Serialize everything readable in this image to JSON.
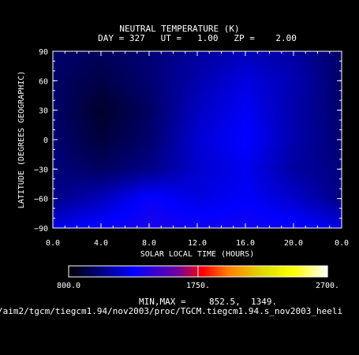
{
  "chart_data": {
    "type": "heatmap",
    "title": "NEUTRAL TEMPERATURE (K)",
    "subtitle": "DAY = 327   UT =   1.00   ZP =    2.00",
    "xlabel": "SOLAR LOCAL TIME (HOURS)",
    "ylabel": "LATITUDE (DEGREES GEOGRAPHIC)",
    "x_ticks": [
      "0.0",
      "4.0",
      "8.0",
      "12.0",
      "16.0",
      "20.0",
      "0.0"
    ],
    "y_ticks": [
      "90",
      "60",
      "30",
      "0",
      "−30",
      "−60",
      "−90"
    ],
    "xlim": [
      0,
      24
    ],
    "ylim": [
      -90,
      90
    ],
    "field": {
      "lats": [
        90,
        60,
        30,
        0,
        -30,
        -60,
        -90
      ],
      "lts": [
        0,
        4,
        8,
        12,
        16,
        20,
        24
      ],
      "values": [
        [
          1000,
          970,
          1020,
          1090,
          1140,
          1100,
          1000
        ],
        [
          990,
          930,
          1010,
          1120,
          1220,
          1130,
          990
        ],
        [
          1000,
          880,
          980,
          1160,
          1260,
          1120,
          1000
        ],
        [
          1010,
          910,
          1000,
          1190,
          1290,
          1120,
          1010
        ],
        [
          1030,
          980,
          1050,
          1180,
          1250,
          1100,
          1030
        ],
        [
          1050,
          1150,
          1300,
          1220,
          1270,
          1180,
          1050
        ],
        [
          1230,
          1300,
          1349,
          1320,
          1330,
          1300,
          1230
        ]
      ]
    },
    "colorbar": {
      "min_label": "800.0",
      "mid_label": "1750.",
      "max_label": "2700.",
      "range": [
        800,
        2700
      ]
    },
    "minmax_label": "MIN,MAX =",
    "min_value": "852.5,",
    "max_value": "1349.",
    "file_path": "/aim2/tgcm/tiegcm1.94/nov2003/proc/TGCM.tiegcm1.94.s_nov2003_heeli"
  }
}
